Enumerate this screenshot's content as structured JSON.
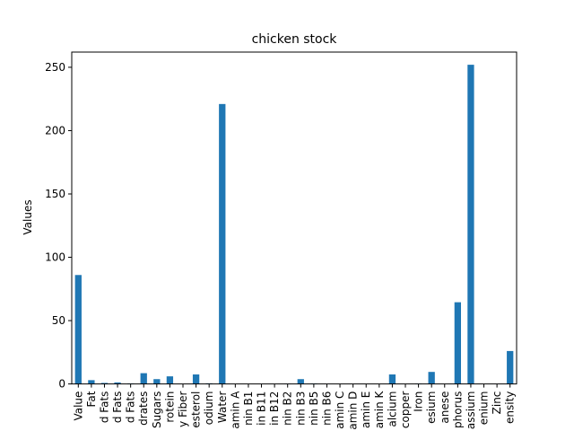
{
  "chart_data": {
    "type": "bar",
    "title": "chicken stock",
    "xlabel": "",
    "ylabel": "Values",
    "ylim": [
      0,
      262
    ],
    "yticks": [
      0,
      50,
      100,
      150,
      200,
      250
    ],
    "grid": false,
    "bar_color": "#1f77b4",
    "categories": [
      "Value",
      "Fat",
      "d Fats",
      "d Fats",
      "d Fats",
      "drates",
      "Sugars",
      "rotein",
      "y Fiber",
      "esterol",
      "odium",
      "Water",
      "amin A",
      "nin B1",
      "in B11",
      "in B12",
      "nin B2",
      "nin B3",
      "nin B5",
      "nin B6",
      "amin C",
      "amin D",
      "amin E",
      "amin K",
      "alcium",
      "copper",
      "Iron",
      "esium",
      "anese",
      "phorus",
      "assium",
      "enium",
      "Zinc",
      "ensity"
    ],
    "values": [
      86,
      3,
      0.8,
      1.2,
      0.4,
      8.5,
      3.8,
      6,
      0,
      7.5,
      0.5,
      221,
      0,
      0,
      0,
      0,
      0.2,
      3.8,
      0.4,
      0.1,
      0,
      0,
      0,
      0,
      7.5,
      0,
      0.3,
      9.5,
      0,
      64.5,
      252,
      0,
      0.1,
      26
    ]
  }
}
